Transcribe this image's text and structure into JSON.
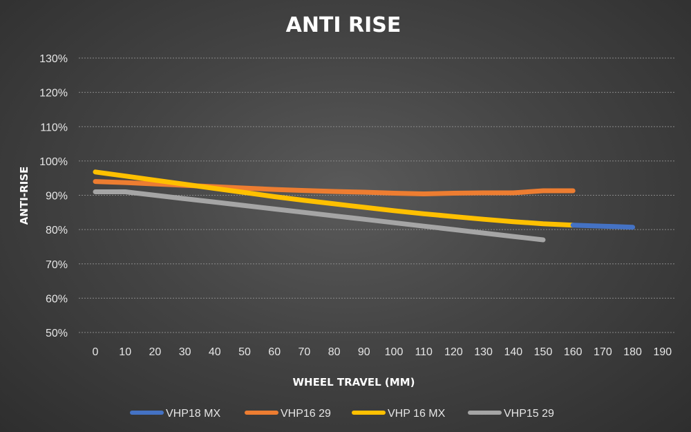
{
  "chart_data": {
    "type": "line",
    "title": "ANTI RISE",
    "xlabel": "WHEEL TRAVEL (MM)",
    "ylabel": "ANTI-RISE",
    "x_ticks": [
      "0",
      "10",
      "20",
      "30",
      "40",
      "50",
      "60",
      "70",
      "80",
      "90",
      "100",
      "110",
      "120",
      "130",
      "140",
      "150",
      "160",
      "170",
      "180",
      "190"
    ],
    "y_ticks": [
      "50%",
      "60%",
      "70%",
      "80%",
      "90%",
      "100%",
      "110%",
      "120%",
      "130%"
    ],
    "xlim": [
      0,
      190
    ],
    "ylim": [
      50,
      130
    ],
    "grid": true,
    "legend_position": "bottom",
    "series": [
      {
        "name": "VHP18 MX",
        "color": "#4472c4",
        "x": [
          160,
          170,
          180
        ],
        "values": [
          81.3,
          81.0,
          80.7
        ]
      },
      {
        "name": "VHP16 29",
        "color": "#ed7d31",
        "x": [
          0,
          10,
          20,
          30,
          40,
          50,
          60,
          70,
          80,
          90,
          100,
          110,
          120,
          130,
          140,
          150,
          160
        ],
        "values": [
          94.0,
          93.7,
          93.3,
          92.9,
          92.5,
          92.1,
          91.7,
          91.4,
          91.1,
          90.9,
          90.6,
          90.4,
          90.6,
          90.7,
          90.7,
          91.3,
          91.3
        ]
      },
      {
        "name": "VHP 16 MX",
        "color": "#ffc000",
        "x": [
          0,
          10,
          20,
          30,
          40,
          50,
          60,
          70,
          80,
          90,
          100,
          110,
          120,
          130,
          140,
          150,
          160
        ],
        "values": [
          96.8,
          95.6,
          94.4,
          93.2,
          92.0,
          90.8,
          89.6,
          88.5,
          87.5,
          86.5,
          85.5,
          84.6,
          83.8,
          83.0,
          82.3,
          81.7,
          81.3
        ]
      },
      {
        "name": "VHP15 29",
        "color": "#a5a5a5",
        "x": [
          0,
          10,
          20,
          30,
          40,
          50,
          60,
          70,
          80,
          90,
          100,
          110,
          120,
          130,
          140,
          150
        ],
        "values": [
          91.0,
          91.0,
          90.0,
          89.0,
          88.0,
          87.0,
          86.0,
          85.0,
          84.0,
          83.0,
          82.0,
          81.0,
          80.0,
          79.0,
          78.0,
          77.0
        ]
      }
    ]
  }
}
